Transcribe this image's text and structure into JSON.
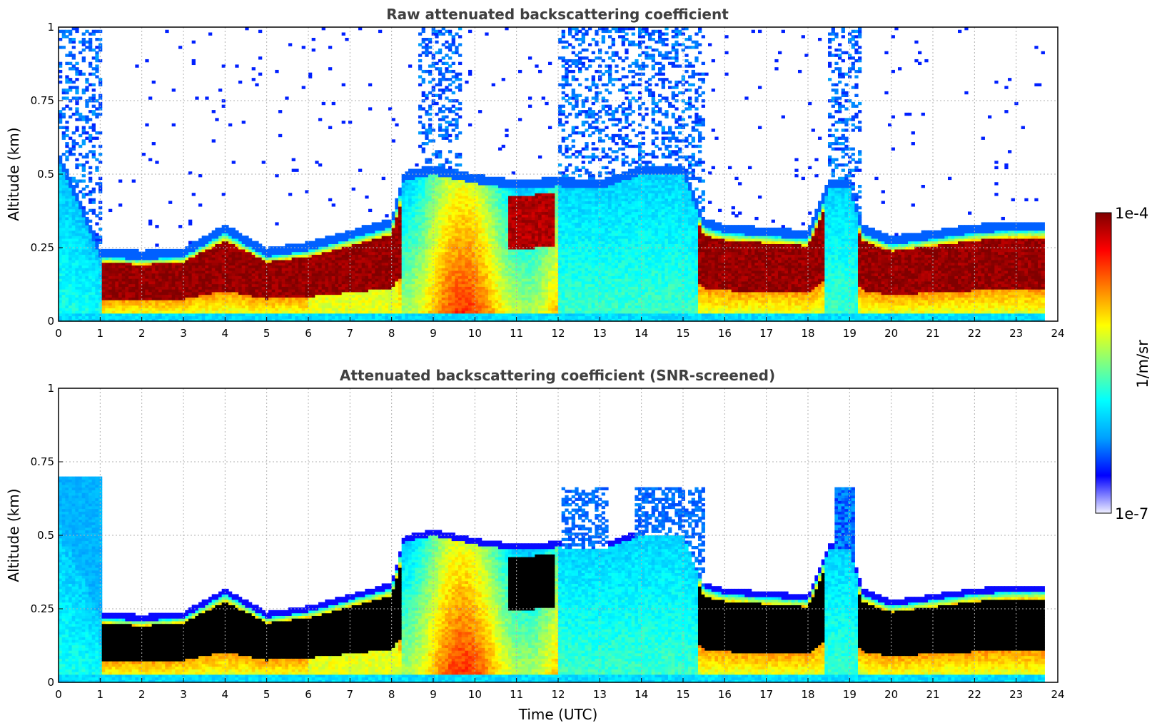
{
  "chart_data": [
    {
      "type": "heatmap",
      "title": "Raw attenuated backscattering coefficient",
      "xlabel": "",
      "ylabel": "Altitude (km)",
      "xlim": [
        0,
        24
      ],
      "ylim": [
        0,
        1
      ],
      "xticks": [
        "0",
        "1",
        "2",
        "3",
        "4",
        "5",
        "6",
        "7",
        "8",
        "9",
        "10",
        "11",
        "12",
        "13",
        "14",
        "15",
        "16",
        "17",
        "18",
        "19",
        "20",
        "21",
        "22",
        "23",
        "24"
      ],
      "yticks": [
        "0",
        "0.25",
        "0.5",
        "0.75",
        "1"
      ],
      "grid": true,
      "data_end_time": 23.7,
      "description_layers": {
        "layer_top_km_by_hour": [
          [
            0,
            0.55
          ],
          [
            1,
            0.22
          ],
          [
            2,
            0.21
          ],
          [
            3,
            0.22
          ],
          [
            4,
            0.3
          ],
          [
            5,
            0.22
          ],
          [
            6,
            0.24
          ],
          [
            7,
            0.28
          ],
          [
            8,
            0.32
          ],
          [
            8.3,
            0.48
          ],
          [
            9,
            0.5
          ],
          [
            10,
            0.47
          ],
          [
            11,
            0.45
          ],
          [
            12,
            0.46
          ],
          [
            13,
            0.45
          ],
          [
            14,
            0.5
          ],
          [
            15,
            0.5
          ],
          [
            15.5,
            0.32
          ],
          [
            16,
            0.3
          ],
          [
            17,
            0.29
          ],
          [
            18,
            0.28
          ],
          [
            18.5,
            0.45
          ],
          [
            19,
            0.45
          ],
          [
            19.3,
            0.3
          ],
          [
            20,
            0.26
          ],
          [
            21,
            0.28
          ],
          [
            22,
            0.3
          ],
          [
            23,
            0.31
          ],
          [
            23.7,
            0.31
          ]
        ]
      }
    },
    {
      "type": "heatmap",
      "title": "Attenuated backscattering coefficient (SNR-screened)",
      "xlabel": "Time (UTC)",
      "ylabel": "Altitude (km)",
      "xlim": [
        0,
        24
      ],
      "ylim": [
        0,
        1
      ],
      "xticks": [
        "0",
        "1",
        "2",
        "3",
        "4",
        "5",
        "6",
        "7",
        "8",
        "9",
        "10",
        "11",
        "12",
        "13",
        "14",
        "15",
        "16",
        "17",
        "18",
        "19",
        "20",
        "21",
        "22",
        "23",
        "24"
      ],
      "yticks": [
        "0",
        "0.25",
        "0.5",
        "0.75",
        "1"
      ],
      "grid": true,
      "data_end_time": 23.7,
      "saturated_color": "#000000"
    }
  ],
  "colorbar": {
    "label": "1/m/sr",
    "max_label": "1e-4",
    "min_label": "1e-7",
    "scale": "log",
    "range": [
      1e-07,
      0.0001
    ],
    "colors": [
      "#f0f0ff",
      "#0000ff",
      "#00a0ff",
      "#00ffff",
      "#80ff80",
      "#ffff00",
      "#ff8000",
      "#ff0000",
      "#800000"
    ]
  }
}
